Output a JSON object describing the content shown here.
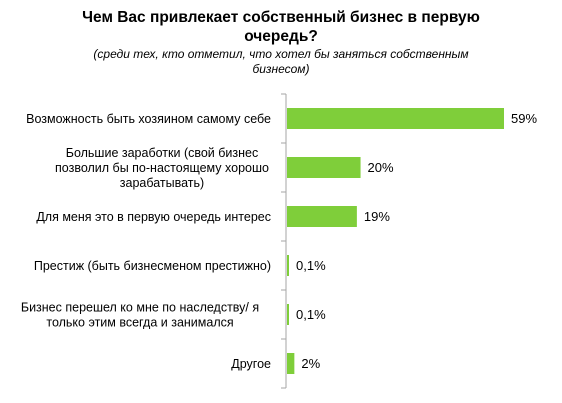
{
  "chart_data": {
    "type": "bar",
    "orientation": "horizontal",
    "title_lines": [
      "Чем Вас привлекает собственный бизнес в первую",
      "очередь?"
    ],
    "subtitle_lines": [
      "(среди тех, кто отметил, что хотел бы заняться собственным",
      "бизнесом)"
    ],
    "categories": [
      [
        "Возможность быть хозяином самому себе"
      ],
      [
        "Большие заработки (свой бизнес",
        "позволил бы по-настоящему хорошо",
        "зарабатывать)"
      ],
      [
        "Для меня это в первую очередь интерес"
      ],
      [
        "Престиж (быть бизнесменом престижно)"
      ],
      [
        "Бизнес перешел ко мне по наследству/ я",
        "только этим всегда и занимался"
      ],
      [
        "Другое"
      ]
    ],
    "values": [
      59,
      20,
      19,
      0.1,
      0.1,
      2
    ],
    "value_labels": [
      "59%",
      "20%",
      "19%",
      "0,1%",
      "0,1%",
      "2%"
    ],
    "xlim": [
      0,
      59
    ],
    "bar_color": "#7fce3a",
    "axis_color": "#a6a6a6",
    "grid": false,
    "legend": "none"
  }
}
